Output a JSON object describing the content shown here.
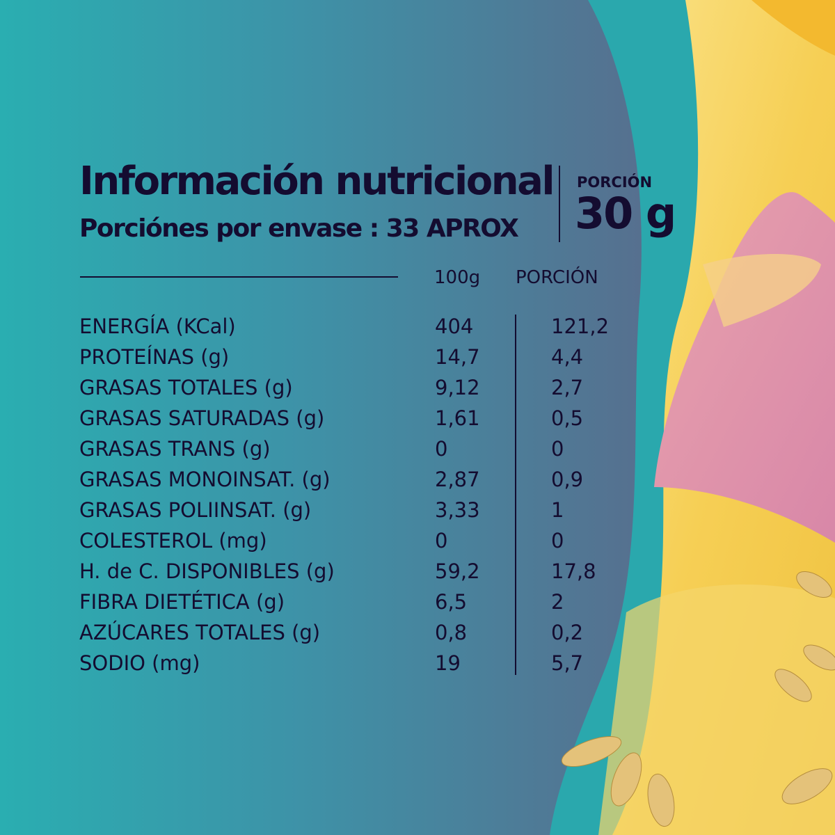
{
  "header": {
    "title": "Información nutricional",
    "servings_per_package": "Porciónes por envase :  33 APROX",
    "portion_label": "PORCIÓN",
    "portion_value": "30 g"
  },
  "table": {
    "columns": [
      "100g",
      "PORCIÓN"
    ],
    "rows": [
      {
        "name": "ENERGÍA (KCal)",
        "per100": "404",
        "portion": "121,2"
      },
      {
        "name": "PROTEÍNAS (g)",
        "per100": "14,7",
        "portion": "4,4"
      },
      {
        "name": "GRASAS TOTALES (g)",
        "per100": "9,12",
        "portion": "2,7"
      },
      {
        "name": "GRASAS SATURADAS (g)",
        "per100": "1,61",
        "portion": "0,5"
      },
      {
        "name": "GRASAS TRANS (g)",
        "per100": "0",
        "portion": "0"
      },
      {
        "name": "GRASAS MONOINSAT. (g)",
        "per100": "2,87",
        "portion": "0,9"
      },
      {
        "name": "GRASAS POLIINSAT. (g)",
        "per100": "3,33",
        "portion": "1"
      },
      {
        "name": "COLESTEROL (mg)",
        "per100": "0",
        "portion": "0"
      },
      {
        "name": "H. de C. DISPONIBLES (g)",
        "per100": "59,2",
        "portion": "17,8"
      },
      {
        "name": "FIBRA DIETÉTICA (g)",
        "per100": "6,5",
        "portion": "2"
      },
      {
        "name": "AZÚCARES TOTALES (g)",
        "per100": "0,8",
        "portion": "0,2"
      },
      {
        "name": "SODIO (mg)",
        "per100": "19",
        "portion": "5,7"
      }
    ]
  },
  "colors": {
    "teal": "#2badb1",
    "slate": "#55708f",
    "text": "#140c30",
    "yellow": "#f6d466",
    "pink": "#dd8fa8"
  }
}
